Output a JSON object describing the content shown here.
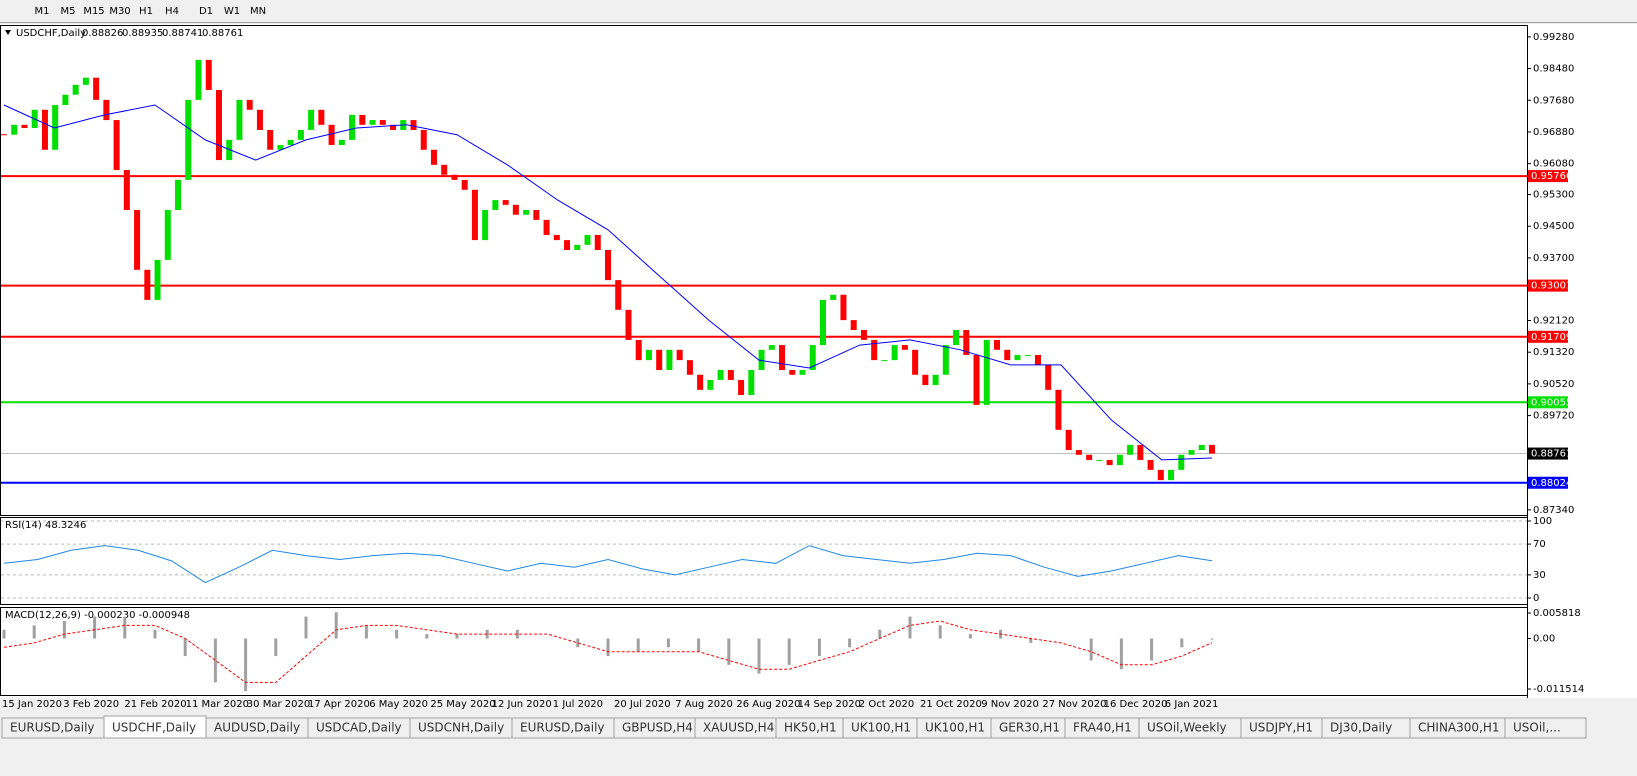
{
  "toolbar": [
    "M1",
    "M5",
    "M15",
    "M30",
    "H1",
    "H4",
    "D1",
    "W1",
    "MN"
  ],
  "chart_data": [
    {
      "type": "candlestick",
      "symbol": "USDCHF,Daily",
      "ohlc": [
        0.88826,
        0.88935,
        0.88741,
        0.88761
      ],
      "closes": [
        0.9681,
        0.9706,
        0.9698,
        0.9744,
        0.9643,
        0.9756,
        0.9782,
        0.9807,
        0.9825,
        0.9769,
        0.9718,
        0.9592,
        0.9491,
        0.934,
        0.9264,
        0.9365,
        0.9491,
        0.9567,
        0.9769,
        0.987,
        0.9794,
        0.9617,
        0.9668,
        0.9769,
        0.9744,
        0.9693,
        0.9643,
        0.9655,
        0.9668,
        0.9693,
        0.9744,
        0.9706,
        0.9655,
        0.9668,
        0.9731,
        0.9706,
        0.9718,
        0.9706,
        0.9693,
        0.9718,
        0.9693,
        0.9643,
        0.9605,
        0.958,
        0.9567,
        0.9542,
        0.9415,
        0.9491,
        0.9516,
        0.9504,
        0.9479,
        0.9491,
        0.9466,
        0.9428,
        0.9415,
        0.939,
        0.9403,
        0.9428,
        0.939,
        0.9314,
        0.9239,
        0.9163,
        0.9112,
        0.9138,
        0.9087,
        0.9138,
        0.9112,
        0.9075,
        0.9037,
        0.9062,
        0.9087,
        0.9062,
        0.9024,
        0.9087,
        0.9138,
        0.915,
        0.9087,
        0.9075,
        0.9087,
        0.915,
        0.9264,
        0.9277,
        0.9213,
        0.9188,
        0.9163,
        0.9112,
        0.9112,
        0.915,
        0.9138,
        0.9075,
        0.9049,
        0.9075,
        0.915,
        0.9188,
        0.9125,
        0.8999,
        0.9163,
        0.9138,
        0.9112,
        0.9125,
        0.9125,
        0.91,
        0.9037,
        0.8936,
        0.8885,
        0.8873,
        0.886,
        0.886,
        0.8847,
        0.8873,
        0.8898,
        0.886,
        0.8835,
        0.8809,
        0.8835,
        0.8873,
        0.8885,
        0.8898,
        0.8876
      ],
      "moving_average": {
        "color": "#0000ff",
        "values": [
          0.9756,
          0.9698,
          0.9731,
          0.9756,
          0.9668,
          0.9617,
          0.9668,
          0.9698,
          0.9706,
          0.9681,
          0.9605,
          0.9516,
          0.9441,
          0.9327,
          0.9213,
          0.9112,
          0.9092,
          0.915,
          0.9163,
          0.9138,
          0.91,
          0.91,
          0.8961,
          0.886,
          0.8865
        ]
      },
      "up_color": "#00e000",
      "down_color": "#ff0000",
      "ylim": [
        0.8721,
        0.9958
      ],
      "yticks": [
        {
          "value": 0.9928,
          "label": "0.99280"
        },
        {
          "value": 0.9848,
          "label": "0.98480"
        },
        {
          "value": 0.9768,
          "label": "0.97680"
        },
        {
          "value": 0.9688,
          "label": "0.96880"
        },
        {
          "value": 0.9608,
          "label": "0.96080"
        },
        {
          "value": 0.953,
          "label": "0.95300"
        },
        {
          "value": 0.945,
          "label": "0.94500"
        },
        {
          "value": 0.937,
          "label": "0.93700"
        },
        {
          "value": 0.9212,
          "label": "0.92120"
        },
        {
          "value": 0.9132,
          "label": "0.91320"
        },
        {
          "value": 0.9052,
          "label": "0.90520"
        },
        {
          "value": 0.8972,
          "label": "0.89720"
        },
        {
          "value": 0.8734,
          "label": "0.87340"
        }
      ],
      "levels": [
        {
          "value": 0.95766,
          "color": "#ff0000"
        },
        {
          "value": 0.93001,
          "color": "#ff0000"
        },
        {
          "value": 0.91709,
          "color": "#ff0000"
        },
        {
          "value": 0.90055,
          "color": "#00e000"
        },
        {
          "value": 0.88024,
          "color": "#0000ff"
        }
      ],
      "last_price": 0.88761,
      "categories": [
        "15 Jan 2020",
        "3 Feb 2020",
        "21 Feb 2020",
        "11 Mar 2020",
        "30 Mar 2020",
        "17 Apr 2020",
        "6 May 2020",
        "25 May 2020",
        "12 Jun 2020",
        "1 Jul 2020",
        "20 Jul 2020",
        "7 Aug 2020",
        "26 Aug 2020",
        "14 Sep 2020",
        "2 Oct 2020",
        "21 Oct 2020",
        "9 Nov 2020",
        "27 Nov 2020",
        "16 Dec 2020",
        "6 Jan 2021"
      ]
    },
    {
      "type": "line",
      "title": "RSI(14) 48.3246",
      "color": "#1e88e5",
      "values": [
        45,
        50,
        62,
        68,
        62,
        48,
        20,
        40,
        62,
        55,
        50,
        55,
        58,
        55,
        45,
        35,
        45,
        40,
        50,
        38,
        30,
        40,
        50,
        45,
        68,
        55,
        50,
        45,
        50,
        58,
        55,
        40,
        28,
        35,
        45,
        55,
        48.3246
      ],
      "ylim": [
        -7.8,
        105.2
      ],
      "yticks": [
        0,
        30,
        70,
        100
      ]
    },
    {
      "type": "macd",
      "title": "MACD(12,26,9) -0.000230 -0.000948",
      "color": "#a0a0a0",
      "signal_color": "#ff0000",
      "values": [
        0.002,
        0.003,
        0.004,
        0.005,
        0.005,
        0.002,
        -0.004,
        -0.01,
        -0.012,
        -0.004,
        0.005,
        0.006,
        0.003,
        0.002,
        0.001,
        0.001,
        0.002,
        0.002,
        0,
        -0.002,
        -0.004,
        -0.003,
        -0.002,
        -0.003,
        -0.006,
        -0.008,
        -0.006,
        -0.004,
        -0.002,
        0.002,
        0.005,
        0.003,
        0.001,
        0.002,
        -0.001,
        0,
        -0.005,
        -0.007,
        -0.005,
        -0.002,
        -0.00023
      ],
      "signal": [
        -0.002,
        -0.001,
        0.001,
        0.002,
        0.003,
        0.003,
        0,
        -0.005,
        -0.01,
        -0.01,
        -0.004,
        0.002,
        0.003,
        0.003,
        0.002,
        0.001,
        0.001,
        0.001,
        0.001,
        -0.001,
        -0.003,
        -0.003,
        -0.003,
        -0.003,
        -0.005,
        -0.007,
        -0.007,
        -0.005,
        -0.003,
        0,
        0.003,
        0.004,
        0.002,
        0.001,
        0,
        -0.001,
        -0.003,
        -0.006,
        -0.006,
        -0.004,
        -0.000948
      ],
      "ylim": [
        -0.01288,
        0.00719
      ],
      "yticks": [
        -0.011514,
        {
          "value": 0,
          "label": "0.00"
        },
        0.005818
      ]
    }
  ],
  "tabs": [
    "EURUSD,Daily",
    "USDCHF,Daily",
    "AUDUSD,Daily",
    "USDCAD,Daily",
    "USDCNH,Daily",
    "EURUSD,Daily",
    "GBPUSD,H4",
    "XAUUSD,H4",
    "HK50,H1",
    "UK100,H1",
    "UK100,H1",
    "GER30,H1",
    "FRA40,H1",
    "USOil,Weekly",
    "USDJPY,H1",
    "DJ30,Daily",
    "CHINA300,H1",
    "USOil,..."
  ],
  "active_tab": 1
}
